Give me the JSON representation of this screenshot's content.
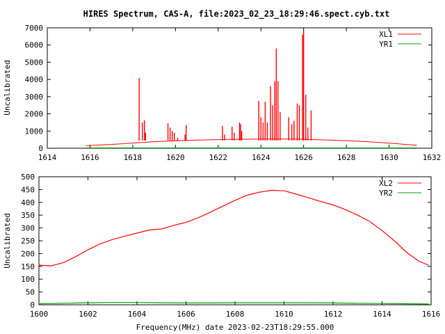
{
  "title": "HIRES Spectrum, CAS-A, file:2023_02_23_18:29:46.spect.cyb.txt",
  "colors": {
    "ch1": "#ff0000",
    "ch2": "#00a000"
  },
  "chart_data": [
    {
      "type": "line",
      "title": "HIRES Spectrum, CAS-A, file:2023_02_23_18:29:46.spect.cyb.txt",
      "xlabel": "",
      "ylabel": "Uncalibrated",
      "xlim": [
        1614,
        1632
      ],
      "ylim": [
        0,
        7000
      ],
      "xticks": [
        1614,
        1616,
        1618,
        1620,
        1622,
        1624,
        1626,
        1628,
        1630,
        1632
      ],
      "yticks": [
        0,
        1000,
        2000,
        3000,
        4000,
        5000,
        6000,
        7000
      ],
      "legend_position": "top-right",
      "baseline": {
        "x": [
          1615.8,
          1617,
          1618,
          1619,
          1620,
          1621,
          1622,
          1623,
          1624,
          1624.8,
          1625.5,
          1626,
          1627,
          1628,
          1629,
          1630,
          1631,
          1631.3
        ],
        "y": [
          150,
          220,
          300,
          380,
          430,
          470,
          500,
          520,
          530,
          535,
          530,
          520,
          480,
          440,
          380,
          300,
          200,
          170
        ]
      },
      "series": [
        {
          "name": "XL1",
          "spikes": [
            [
              1618.3,
              4080
            ],
            [
              1618.45,
              1500
            ],
            [
              1618.55,
              1620
            ],
            [
              1618.6,
              900
            ],
            [
              1619.65,
              1450
            ],
            [
              1619.75,
              1200
            ],
            [
              1619.85,
              1000
            ],
            [
              1619.95,
              900
            ],
            [
              1620.1,
              600
            ],
            [
              1620.5,
              1350
            ],
            [
              1620.45,
              800
            ],
            [
              1622.2,
              1300
            ],
            [
              1622.3,
              800
            ],
            [
              1622.65,
              1250
            ],
            [
              1622.75,
              900
            ],
            [
              1623.0,
              1500
            ],
            [
              1623.05,
              1400
            ],
            [
              1623.1,
              1000
            ],
            [
              1623.9,
              2750
            ],
            [
              1624.0,
              1800
            ],
            [
              1624.1,
              1500
            ],
            [
              1624.2,
              2700
            ],
            [
              1624.3,
              1500
            ],
            [
              1624.45,
              3600
            ],
            [
              1624.55,
              2500
            ],
            [
              1624.65,
              3900
            ],
            [
              1624.72,
              5800
            ],
            [
              1624.8,
              3900
            ],
            [
              1624.9,
              2100
            ],
            [
              1625.3,
              1800
            ],
            [
              1625.45,
              1400
            ],
            [
              1625.55,
              1600
            ],
            [
              1625.7,
              2600
            ],
            [
              1625.8,
              2500
            ],
            [
              1625.95,
              6600
            ],
            [
              1626.0,
              6800
            ],
            [
              1626.1,
              3100
            ],
            [
              1626.2,
              1200
            ],
            [
              1626.35,
              2200
            ]
          ]
        },
        {
          "name": "YR1",
          "values": "near zero"
        }
      ]
    },
    {
      "type": "line",
      "title": "",
      "xlabel": "Frequency(MHz) date 2023-02-23T18:29:55.000",
      "ylabel": "Uncalibrated",
      "xlim": [
        1600,
        1616
      ],
      "ylim": [
        0,
        500
      ],
      "xticks": [
        1600,
        1602,
        1604,
        1606,
        1608,
        1610,
        1612,
        1614,
        1616
      ],
      "yticks": [
        0,
        50,
        100,
        150,
        200,
        250,
        300,
        350,
        400,
        450,
        500
      ],
      "legend_position": "top-right",
      "series": [
        {
          "name": "XL2",
          "x": [
            1600,
            1600.5,
            1601,
            1601.5,
            1602,
            1602.5,
            1603,
            1603.5,
            1604,
            1604.5,
            1605,
            1605.5,
            1606,
            1606.5,
            1607,
            1607.5,
            1608,
            1608.5,
            1609,
            1609.5,
            1610,
            1610.5,
            1611,
            1611.5,
            1612,
            1612.5,
            1613,
            1613.5,
            1614,
            1614.5,
            1615,
            1615.5,
            1615.9
          ],
          "y": [
            155,
            152,
            165,
            188,
            215,
            238,
            255,
            268,
            280,
            292,
            296,
            310,
            322,
            340,
            362,
            385,
            408,
            428,
            440,
            447,
            445,
            432,
            418,
            403,
            390,
            372,
            350,
            325,
            290,
            250,
            205,
            170,
            155
          ]
        },
        {
          "name": "YR2",
          "x": [
            1600,
            1601,
            1602,
            1603,
            1604,
            1605,
            1606,
            1607,
            1608,
            1609,
            1610,
            1611,
            1612,
            1613,
            1614,
            1615,
            1615.9
          ],
          "y": [
            4,
            6,
            8,
            9,
            9,
            8,
            7,
            7,
            8,
            8,
            8,
            8,
            7,
            6,
            5,
            4,
            3
          ]
        }
      ]
    }
  ]
}
